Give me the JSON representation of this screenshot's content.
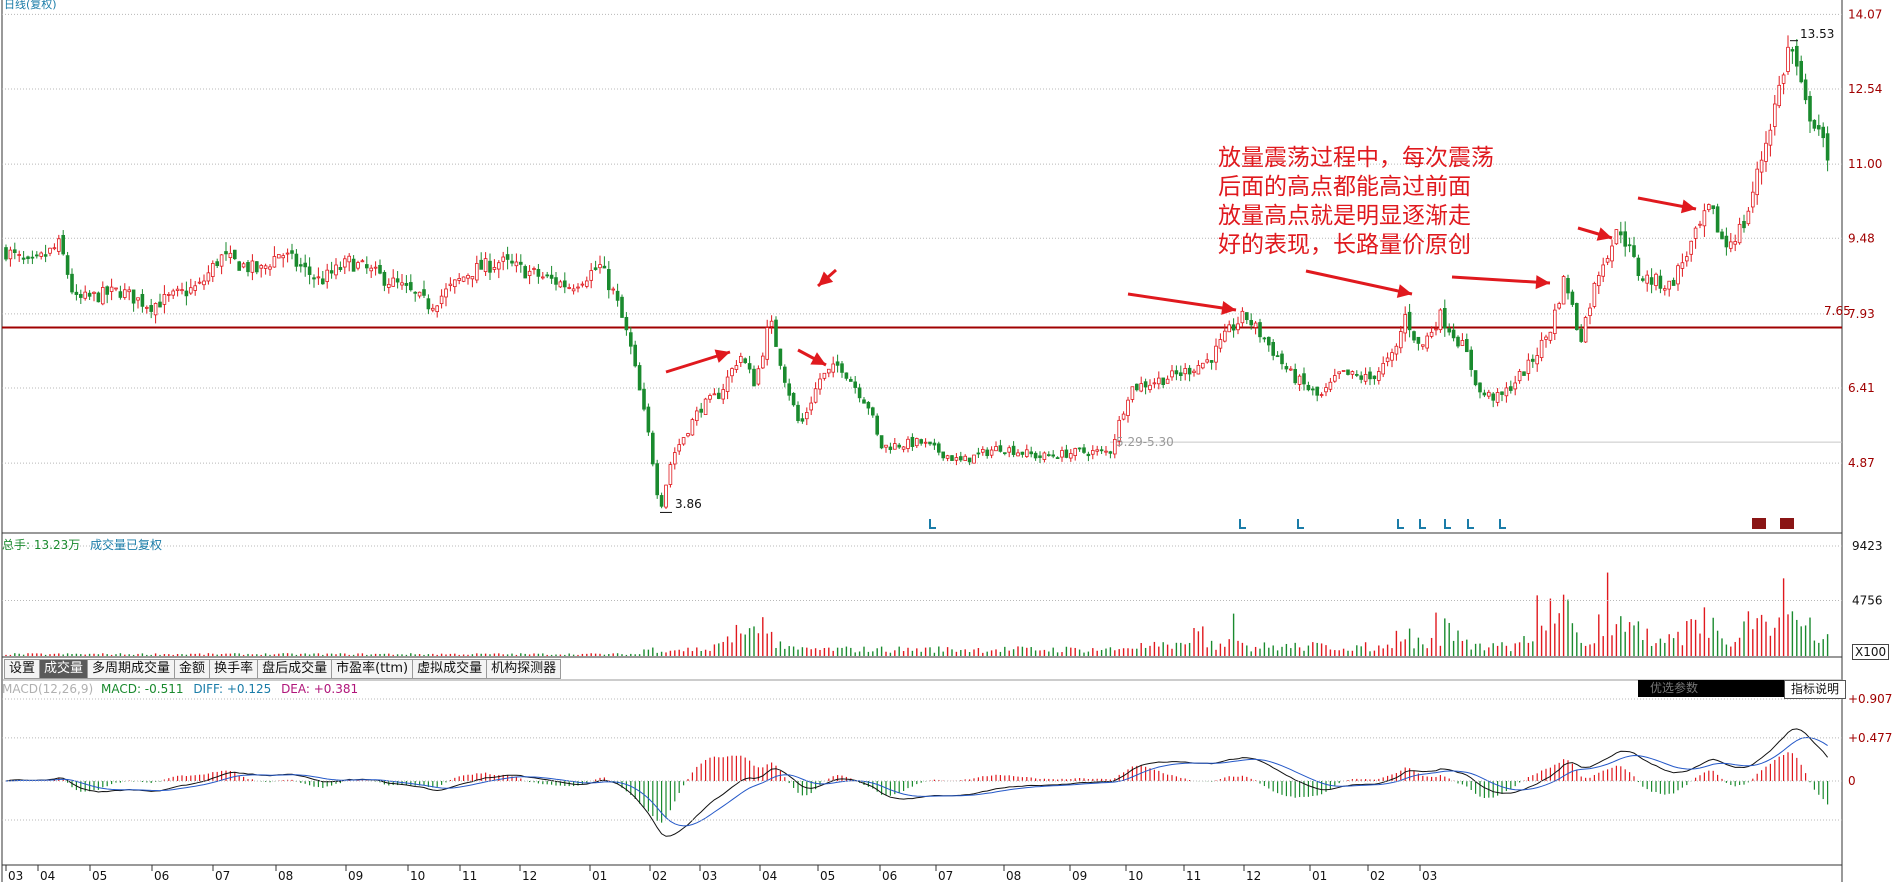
{
  "header": {
    "title": "日线(复权)"
  },
  "annotation": {
    "lines": [
      "放量震荡过程中，每次震荡",
      "后面的高点都能高过前面",
      "放量高点就是明显逐渐走",
      "好的表现，长路量价原创"
    ]
  },
  "price_panel": {
    "axis_ticks": [
      "14.07",
      "12.54",
      "11.00",
      "9.48",
      "7.93",
      "6.41",
      "4.87"
    ],
    "high_label": "13.53",
    "low_label": "3.86",
    "support_label": "7.65",
    "range_label": "5.29-5.30"
  },
  "volume_panel": {
    "total_label": "总手: 13.23万",
    "note_label": "成交量已复权",
    "axis_ticks": [
      "9423",
      "4756"
    ],
    "unit_label": "X100"
  },
  "tabs": [
    "设置",
    "成交量",
    "多周期成交量",
    "金额",
    "换手率",
    "盘后成交量",
    "市盈率(ttm)",
    "虚拟成交量",
    "机构探测器"
  ],
  "active_tab": "成交量",
  "macd_panel": {
    "name": "MACD(12,26,9)",
    "macd": "MACD: -0.511",
    "diff": "DIFF: +0.125",
    "dea": "DEA: +0.381",
    "axis_ticks": [
      "+0.907",
      "+0.477",
      "0"
    ],
    "optimize_button": "优选参数",
    "explain_button": "指标说明"
  },
  "x_axis": {
    "ticks": [
      "03",
      "04",
      "05",
      "06",
      "07",
      "08",
      "09",
      "10",
      "11",
      "12",
      "01",
      "02",
      "03",
      "04",
      "05",
      "06",
      "07",
      "08",
      "09",
      "10",
      "11",
      "12",
      "01",
      "02",
      "03"
    ]
  },
  "colors": {
    "up": "#e0191e",
    "down": "#1a8a2e",
    "support_line": "#a00000",
    "diff_line": "#111111",
    "dea_line": "#2458c8",
    "annotation": "#e0191e"
  },
  "chart_data": {
    "type": "candlestick",
    "price_axis_ticks": [
      14.07,
      12.54,
      11.0,
      9.48,
      7.93,
      6.41,
      4.87
    ],
    "price_range": [
      3.5,
      14.2
    ],
    "support_level": 7.65,
    "high": 13.53,
    "low": 3.86,
    "path": [
      [
        0,
        9.3
      ],
      [
        30,
        8.9
      ],
      [
        60,
        9.35
      ],
      [
        75,
        8.2
      ],
      [
        120,
        8.4
      ],
      [
        150,
        8.1
      ],
      [
        200,
        8.5
      ],
      [
        220,
        9.1
      ],
      [
        260,
        8.8
      ],
      [
        280,
        9.2
      ],
      [
        320,
        8.6
      ],
      [
        350,
        9.0
      ],
      [
        400,
        8.5
      ],
      [
        430,
        8.1
      ],
      [
        470,
        8.8
      ],
      [
        500,
        9.0
      ],
      [
        540,
        8.7
      ],
      [
        570,
        8.5
      ],
      [
        600,
        8.9
      ],
      [
        615,
        8.3
      ],
      [
        630,
        7.3
      ],
      [
        650,
        5.3
      ],
      [
        660,
        3.9
      ],
      [
        672,
        5.0
      ],
      [
        700,
        6.0
      ],
      [
        720,
        6.3
      ],
      [
        740,
        7.1
      ],
      [
        755,
        6.5
      ],
      [
        770,
        7.8
      ],
      [
        785,
        6.6
      ],
      [
        800,
        5.6
      ],
      [
        820,
        6.6
      ],
      [
        840,
        6.9
      ],
      [
        870,
        6.0
      ],
      [
        880,
        5.2
      ],
      [
        920,
        5.3
      ],
      [
        960,
        4.9
      ],
      [
        1000,
        5.2
      ],
      [
        1040,
        5.0
      ],
      [
        1080,
        5.1
      ],
      [
        1110,
        5.1
      ],
      [
        1130,
        6.4
      ],
      [
        1180,
        6.7
      ],
      [
        1210,
        7.0
      ],
      [
        1230,
        7.6
      ],
      [
        1245,
        7.9
      ],
      [
        1265,
        7.4
      ],
      [
        1290,
        6.7
      ],
      [
        1320,
        6.2
      ],
      [
        1340,
        6.7
      ],
      [
        1370,
        6.6
      ],
      [
        1395,
        7.1
      ],
      [
        1405,
        7.9
      ],
      [
        1420,
        7.2
      ],
      [
        1440,
        7.9
      ],
      [
        1465,
        7.2
      ],
      [
        1480,
        6.3
      ],
      [
        1500,
        6.2
      ],
      [
        1530,
        6.9
      ],
      [
        1550,
        7.6
      ],
      [
        1565,
        8.7
      ],
      [
        1580,
        7.4
      ],
      [
        1600,
        8.9
      ],
      [
        1620,
        9.7
      ],
      [
        1640,
        8.7
      ],
      [
        1670,
        8.5
      ],
      [
        1690,
        9.3
      ],
      [
        1710,
        10.1
      ],
      [
        1725,
        9.3
      ],
      [
        1745,
        9.8
      ],
      [
        1760,
        11.0
      ],
      [
        1775,
        12.2
      ],
      [
        1790,
        13.5
      ],
      [
        1805,
        12.2
      ],
      [
        1820,
        11.7
      ],
      [
        1832,
        10.5
      ]
    ],
    "volume_axis_ticks": [
      9423,
      4756
    ],
    "volume_spikes": [
      [
        735,
        0.35
      ],
      [
        760,
        0.45
      ],
      [
        1200,
        0.3
      ],
      [
        1235,
        0.35
      ],
      [
        1400,
        0.4
      ],
      [
        1445,
        0.48
      ],
      [
        1550,
        0.85
      ],
      [
        1565,
        0.6
      ],
      [
        1610,
        0.75
      ],
      [
        1640,
        0.55
      ],
      [
        1700,
        0.65
      ],
      [
        1755,
        0.6
      ],
      [
        1785,
        1.0
      ],
      [
        1800,
        0.55
      ]
    ],
    "macd_axis_ticks": [
      0.907,
      0.477,
      0
    ],
    "macd": {
      "macd": -0.511,
      "diff": 0.125,
      "dea": 0.381
    },
    "x_ticks": [
      "03",
      "04",
      "05",
      "06",
      "07",
      "08",
      "09",
      "10",
      "11",
      "12",
      "01",
      "02",
      "03",
      "04",
      "05",
      "06",
      "07",
      "08",
      "09",
      "10",
      "11",
      "12",
      "01",
      "02",
      "03"
    ]
  }
}
